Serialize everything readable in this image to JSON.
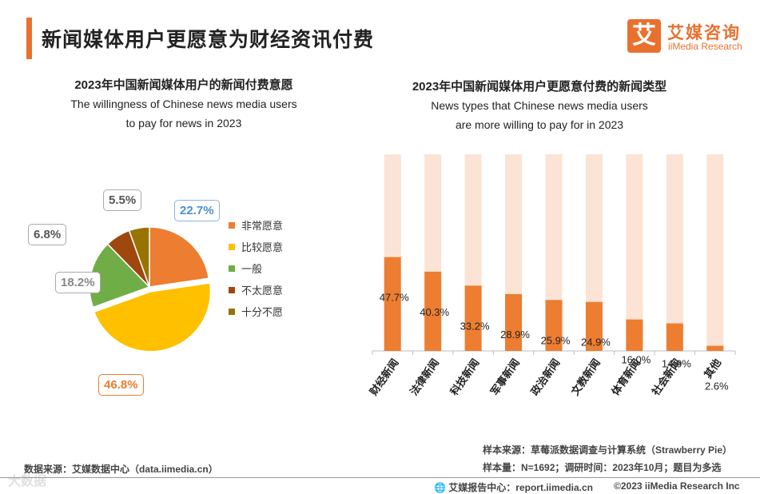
{
  "header": {
    "title": "新闻媒体用户更愿意为财经资讯付费",
    "logo_glyph": "艾",
    "logo_cn": "艾媒咨询",
    "logo_en": "iiMedia Research"
  },
  "pie_section": {
    "title": "2023年中国新闻媒体用户的新闻付费意愿",
    "subtitle_line1": "The willingness of Chinese news media users",
    "subtitle_line2": "to pay for news in 2023"
  },
  "bar_section": {
    "title": "2023年中国新闻媒体用户更愿意付费的新闻类型",
    "subtitle_line1": "News types that Chinese news media users",
    "subtitle_line2": "are more willing to pay for in 2023"
  },
  "chart_data": [
    {
      "type": "pie",
      "title": "2023年中国新闻媒体用户的新闻付费意愿",
      "labels": [
        "非常愿意",
        "比较愿意",
        "一般",
        "不太愿意",
        "十分不愿"
      ],
      "values": [
        22.7,
        46.8,
        18.2,
        6.8,
        5.5
      ],
      "value_labels": [
        "22.7%",
        "46.8%",
        "18.2%",
        "6.8%",
        "5.5%"
      ],
      "colors": [
        "#ed7d31",
        "#ffc000",
        "#70ad47",
        "#9e480e",
        "#997300"
      ],
      "legend": "right"
    },
    {
      "type": "bar",
      "title": "2023年中国新闻媒体用户更愿意付费的新闻类型",
      "categories": [
        "财经新闻",
        "法律新闻",
        "科技新闻",
        "军事新闻",
        "政治新闻",
        "文教新闻",
        "体育新闻",
        "社会新闻",
        "其他"
      ],
      "values": [
        47.7,
        40.3,
        33.2,
        28.9,
        25.9,
        24.9,
        16.0,
        14.0,
        2.6
      ],
      "value_labels": [
        "47.7%",
        "40.3%",
        "33.2%",
        "28.9%",
        "25.9%",
        "24.9%",
        "16.0%",
        "14.0%",
        "2.6%"
      ],
      "ylim": [
        0,
        100
      ],
      "bar_color": "#ed7d31",
      "background_color": "#fbe4d5"
    }
  ],
  "notes": {
    "sample_source": "样本来源：草莓派数据调查与计算系统（Strawberry Pie）",
    "sample_size": "样本量：N=1692；调研时间：2023年10月；题目为多选",
    "data_source": "数据来源：艾媒数据中心（data.iimedia.cn）"
  },
  "footer": {
    "report_center": "艾媒报告中心：report.iimedia.cn",
    "copyright": "©2023  iiMedia Research  Inc",
    "watermark": "大数据"
  }
}
